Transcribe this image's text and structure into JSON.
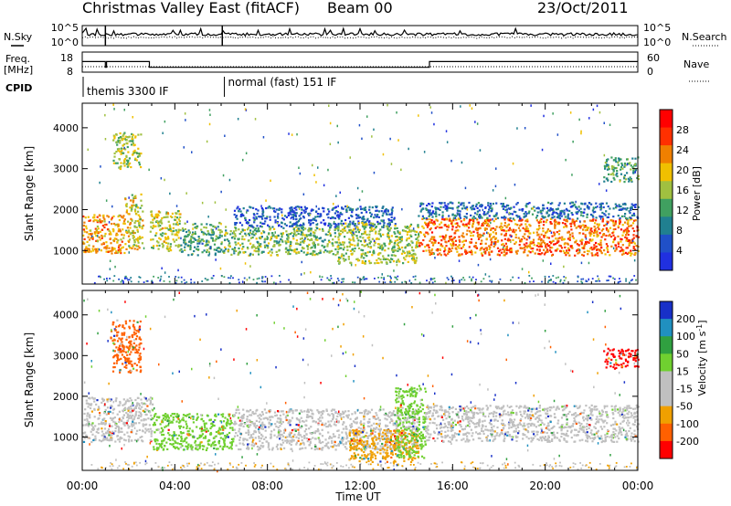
{
  "header": {
    "title": "Christmas Valley East (fitACF)",
    "beam": "Beam 00",
    "date": "23/Oct/2011"
  },
  "colors": {
    "power_scale": [
      "#2030e0",
      "#2050c8",
      "#208090",
      "#40a060",
      "#a0c040",
      "#f0c000",
      "#f08000",
      "#ff3000",
      "#ff0000"
    ],
    "velocity_scale": [
      "#1830c8",
      "#2090c0",
      "#30a040",
      "#70d030",
      "#c0c0c0",
      "#c0c0c0",
      "#f0a000",
      "#ff6000",
      "#ff0000"
    ]
  },
  "chart_data": [
    {
      "type": "line",
      "panel": "noise",
      "left_label": "N.Sky",
      "right_label": "N.Search",
      "left_ticks": [
        "10^5",
        "10^0"
      ],
      "right_ticks": [
        "10^5",
        "10^0"
      ],
      "xlim": [
        0,
        24
      ],
      "series": []
    },
    {
      "type": "line",
      "panel": "frequency",
      "left_label_lines": [
        "Freq.",
        "[MHz]"
      ],
      "right_label": "Nave",
      "left_ticks": [
        "18",
        "8"
      ],
      "right_ticks": [
        "60",
        "0"
      ],
      "freq_steps": [
        [
          0,
          14
        ],
        [
          1,
          10
        ],
        [
          1.05,
          14
        ],
        [
          2.8,
          14
        ],
        [
          2.9,
          10
        ],
        [
          14.9,
          10
        ],
        [
          15,
          14
        ],
        [
          24,
          14
        ]
      ]
    },
    {
      "type": "table",
      "panel": "cpid",
      "label": "CPID",
      "segments": [
        {
          "start": 0,
          "end": 6.1,
          "text": "themis 3300 IF"
        },
        {
          "start": 6.1,
          "end": 24,
          "text": "normal (fast) 151 IF"
        }
      ]
    },
    {
      "type": "heatmap",
      "panel": "power",
      "ylabel": "Slant Range [km]",
      "xlim": [
        0,
        24
      ],
      "ylim": [
        180,
        4600
      ],
      "yticks": [
        1000,
        2000,
        3000,
        4000
      ],
      "colorbar_label": "Power [dB]",
      "colorbar_ticks": [
        "28",
        "24",
        "20",
        "16",
        "12",
        "8",
        "4"
      ],
      "colorbar_range": [
        0,
        32
      ],
      "echo_regions": [
        {
          "t0": 0,
          "t1": 1.8,
          "r0": 950,
          "r1": 1900,
          "level": 22
        },
        {
          "t0": 1.8,
          "t1": 2.6,
          "r0": 1050,
          "r1": 2400,
          "level": 18
        },
        {
          "t0": 2.9,
          "t1": 4.2,
          "r0": 1000,
          "r1": 2000,
          "level": 17
        },
        {
          "t0": 4.2,
          "t1": 6.0,
          "r0": 900,
          "r1": 1700,
          "level": 12
        },
        {
          "t0": 6.0,
          "t1": 11.0,
          "r0": 900,
          "r1": 1600,
          "level": 14
        },
        {
          "t0": 6.5,
          "t1": 13.5,
          "r0": 1600,
          "r1": 2100,
          "level": 6
        },
        {
          "t0": 11.0,
          "t1": 14.5,
          "r0": 700,
          "r1": 1700,
          "level": 16
        },
        {
          "t0": 14.5,
          "t1": 24,
          "r0": 900,
          "r1": 1800,
          "level": 24
        },
        {
          "t0": 14.5,
          "t1": 24,
          "r0": 1800,
          "r1": 2200,
          "level": 7
        },
        {
          "t0": 1.3,
          "t1": 2.5,
          "r0": 3000,
          "r1": 3900,
          "level": 16
        },
        {
          "t0": 22.5,
          "t1": 24,
          "r0": 2700,
          "r1": 3300,
          "level": 12
        }
      ]
    },
    {
      "type": "heatmap",
      "panel": "velocity",
      "ylabel": "Slant Range [km]",
      "xlabel": "Time UT",
      "xlim": [
        0,
        24
      ],
      "ylim": [
        180,
        4600
      ],
      "yticks": [
        1000,
        2000,
        3000,
        4000
      ],
      "xticks": [
        "00:00",
        "04:00",
        "08:00",
        "12:00",
        "16:00",
        "20:00",
        "00:00"
      ],
      "colorbar_label": "Velocity [m s^-1]",
      "colorbar_ticks": [
        "200",
        "100",
        "50",
        "15",
        "-15",
        "-50",
        "-100",
        "-200"
      ],
      "echo_regions": [
        {
          "t0": 0,
          "t1": 3.0,
          "r0": 900,
          "r1": 2000,
          "level": "-15..15"
        },
        {
          "t0": 3.0,
          "t1": 6.5,
          "r0": 700,
          "r1": 1600,
          "level": "15..50"
        },
        {
          "t0": 6.5,
          "t1": 14.5,
          "r0": 700,
          "r1": 1700,
          "level": "-15..15"
        },
        {
          "t0": 11.5,
          "t1": 14.5,
          "r0": 400,
          "r1": 1200,
          "level": "-50..-15"
        },
        {
          "t0": 13.5,
          "t1": 14.8,
          "r0": 500,
          "r1": 2300,
          "level": "15..50"
        },
        {
          "t0": 14.8,
          "t1": 24,
          "r0": 900,
          "r1": 1800,
          "level": "-15..15"
        },
        {
          "t0": 1.2,
          "t1": 2.5,
          "r0": 2600,
          "r1": 3900,
          "level": "-100..-50"
        },
        {
          "t0": 22.5,
          "t1": 24,
          "r0": 2700,
          "r1": 3200,
          "level": "-200..-100"
        }
      ]
    }
  ]
}
